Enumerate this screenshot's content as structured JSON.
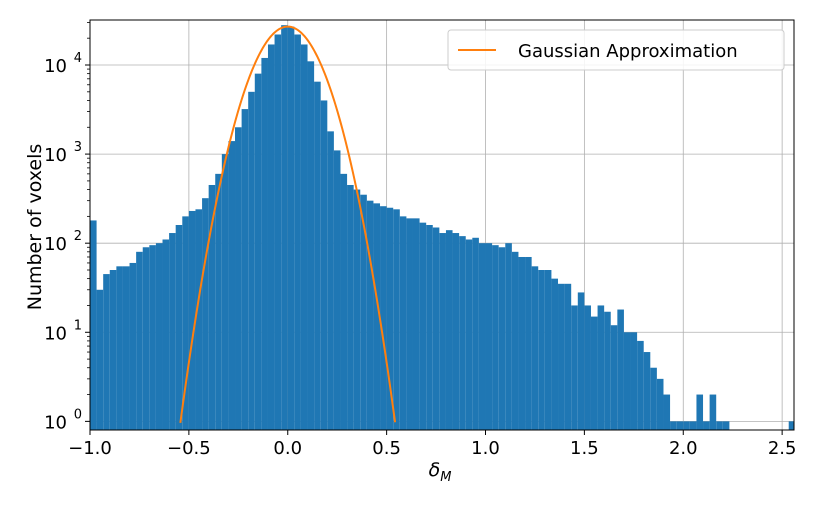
{
  "chart_data": {
    "type": "bar",
    "title": "",
    "xlabel": "δ",
    "xlabel_sub": "M",
    "ylabel": "Number of voxels",
    "yscale": "log",
    "xlim": [
      -1.0,
      2.56
    ],
    "ylim": [
      0.8,
      32000
    ],
    "grid": true,
    "legend_position": "top-right",
    "colors": {
      "bars": "#1f77b4",
      "gaussian": "#ff7f0e",
      "grid": "#b0b0b0"
    },
    "x_ticks": [
      {
        "value": -1.0,
        "label": "−1.0"
      },
      {
        "value": -0.5,
        "label": "−0.5"
      },
      {
        "value": 0.0,
        "label": "0.0"
      },
      {
        "value": 0.5,
        "label": "0.5"
      },
      {
        "value": 1.0,
        "label": "1.0"
      },
      {
        "value": 1.5,
        "label": "1.5"
      },
      {
        "value": 2.0,
        "label": "2.0"
      },
      {
        "value": 2.5,
        "label": "2.5"
      }
    ],
    "y_ticks": [
      {
        "value": 1,
        "base": "10",
        "exp": "0"
      },
      {
        "value": 10,
        "base": "10",
        "exp": "1"
      },
      {
        "value": 100,
        "base": "10",
        "exp": "2"
      },
      {
        "value": 1000,
        "base": "10",
        "exp": "3"
      },
      {
        "value": 10000,
        "base": "10",
        "exp": "4"
      }
    ],
    "bin_width": 0.0333,
    "histogram": {
      "bin_left": [
        -1.0,
        -0.9667,
        -0.9333,
        -0.9,
        -0.8667,
        -0.8333,
        -0.8,
        -0.7667,
        -0.7333,
        -0.7,
        -0.6667,
        -0.6333,
        -0.6,
        -0.5667,
        -0.5333,
        -0.5,
        -0.4667,
        -0.4333,
        -0.4,
        -0.3667,
        -0.3333,
        -0.3,
        -0.2667,
        -0.2333,
        -0.2,
        -0.1667,
        -0.1333,
        -0.1,
        -0.0667,
        -0.0333,
        0.0,
        0.0333,
        0.0667,
        0.1,
        0.1333,
        0.1667,
        0.2,
        0.2333,
        0.2667,
        0.3,
        0.3333,
        0.3667,
        0.4,
        0.4333,
        0.4667,
        0.5,
        0.5333,
        0.5667,
        0.6,
        0.6333,
        0.6667,
        0.7,
        0.7333,
        0.7667,
        0.8,
        0.8333,
        0.8667,
        0.9,
        0.9333,
        0.9667,
        1.0,
        1.0333,
        1.0667,
        1.1,
        1.1333,
        1.1667,
        1.2,
        1.2333,
        1.2667,
        1.3,
        1.3333,
        1.3667,
        1.4,
        1.4333,
        1.4667,
        1.5,
        1.5333,
        1.5667,
        1.6,
        1.6333,
        1.6667,
        1.7,
        1.7333,
        1.7667,
        1.8,
        1.8333,
        1.8667,
        1.9,
        1.9333,
        1.9667,
        2.0,
        2.0333,
        2.0667,
        2.1,
        2.1333,
        2.1667,
        2.2,
        2.5333
      ],
      "count": [
        180,
        30,
        45,
        50,
        55,
        55,
        60,
        80,
        90,
        95,
        100,
        110,
        130,
        160,
        200,
        230,
        240,
        320,
        450,
        600,
        1000,
        1400,
        2000,
        3200,
        5000,
        8000,
        12000,
        17000,
        22000,
        28000,
        27000,
        22000,
        17000,
        11000,
        6500,
        4000,
        1800,
        1100,
        600,
        450,
        400,
        350,
        300,
        280,
        260,
        250,
        240,
        200,
        190,
        190,
        170,
        160,
        150,
        130,
        140,
        130,
        120,
        110,
        115,
        100,
        100,
        95,
        90,
        100,
        80,
        70,
        70,
        55,
        50,
        50,
        40,
        35,
        35,
        20,
        28,
        20,
        15,
        20,
        17,
        12,
        18,
        10,
        10,
        8,
        6,
        4,
        3,
        2,
        1,
        1,
        1,
        1,
        2,
        1,
        2,
        1,
        1,
        1
      ]
    },
    "series": [
      {
        "name": "Gaussian Approximation",
        "type": "line",
        "model": "gaussian",
        "amplitude": 27000,
        "mean": 0.0,
        "sigma": 0.12
      }
    ]
  }
}
